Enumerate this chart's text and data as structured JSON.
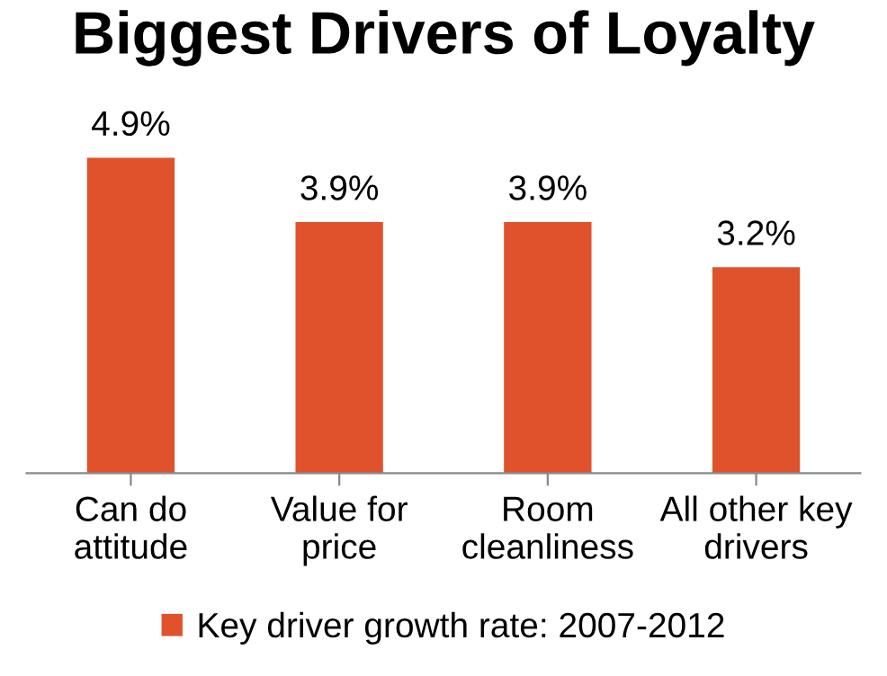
{
  "chart_data": {
    "type": "bar",
    "title": "Biggest Drivers of Loyalty",
    "categories": [
      "Can do\nattitude",
      "Value for\nprice",
      "Room\ncleanliness",
      "All other key\ndrivers"
    ],
    "series": [
      {
        "name": "Key driver growth rate: 2007-2012",
        "color": "#e0522c",
        "values": [
          4.9,
          3.9,
          3.9,
          3.2
        ],
        "value_labels": [
          "4.9%",
          "3.9%",
          "3.9%",
          "3.2%"
        ]
      }
    ],
    "legend": "bottom",
    "grid": false
  }
}
